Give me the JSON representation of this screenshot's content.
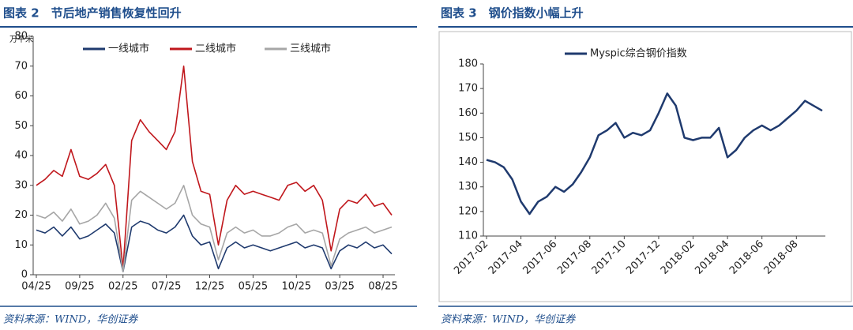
{
  "chart_data": [
    {
      "type": "line",
      "title": "图表 2　节后地产销售恢复性回升",
      "y_unit": "万平米",
      "source": "资料来源：WIND，华创证券",
      "categories": [
        "04/25",
        null,
        null,
        null,
        null,
        "09/25",
        null,
        null,
        null,
        null,
        "02/25",
        null,
        null,
        null,
        null,
        "07/25",
        null,
        null,
        null,
        null,
        "12/25",
        null,
        null,
        null,
        null,
        "05/25",
        null,
        null,
        null,
        null,
        "10/25",
        null,
        null,
        null,
        null,
        "03/25",
        null,
        null,
        null,
        null,
        "08/25",
        null
      ],
      "series": [
        {
          "name": "一线城市",
          "color": "#1f3a6e",
          "values": [
            15,
            14,
            16,
            13,
            16,
            12,
            13,
            15,
            17,
            14,
            1,
            16,
            18,
            17,
            15,
            14,
            16,
            20,
            13,
            10,
            11,
            2,
            9,
            11,
            9,
            10,
            9,
            8,
            9,
            10,
            11,
            9,
            10,
            9,
            2,
            8,
            10,
            9,
            11,
            9,
            10,
            7
          ]
        },
        {
          "name": "二线城市",
          "color": "#c0171c",
          "values": [
            30,
            32,
            35,
            33,
            42,
            33,
            32,
            34,
            37,
            30,
            2,
            45,
            52,
            48,
            45,
            42,
            48,
            70,
            38,
            28,
            27,
            10,
            25,
            30,
            27,
            28,
            27,
            26,
            25,
            30,
            31,
            28,
            30,
            25,
            8,
            22,
            25,
            24,
            27,
            23,
            24,
            20
          ]
        },
        {
          "name": "三线城市",
          "color": "#a6a6a6",
          "values": [
            20,
            19,
            21,
            18,
            22,
            17,
            18,
            20,
            24,
            19,
            1,
            25,
            28,
            26,
            24,
            22,
            24,
            30,
            20,
            17,
            16,
            5,
            14,
            16,
            14,
            15,
            13,
            13,
            14,
            16,
            17,
            14,
            15,
            14,
            3,
            12,
            14,
            15,
            16,
            14,
            15,
            16
          ]
        }
      ],
      "ylim": [
        0,
        80
      ],
      "yticks": [
        0,
        10,
        20,
        30,
        40,
        50,
        60,
        70,
        80
      ]
    },
    {
      "type": "line",
      "title": "图表 3　钢价指数小幅上升",
      "source": "资料来源：WIND，华创证券",
      "categories": [
        "2017-02",
        null,
        null,
        null,
        "2017-04",
        null,
        null,
        null,
        "2017-06",
        null,
        null,
        null,
        "2017-08",
        null,
        null,
        null,
        "2017-10",
        null,
        null,
        null,
        "2017-12",
        null,
        null,
        null,
        "2018-02",
        null,
        null,
        null,
        "2018-04",
        null,
        null,
        null,
        "2018-06",
        null,
        null,
        null,
        "2018-08",
        null,
        null,
        null
      ],
      "series": [
        {
          "name": "Myspic综合钢价指数",
          "color": "#1f3a6e",
          "values": [
            141,
            140,
            138,
            133,
            124,
            119,
            124,
            126,
            130,
            128,
            131,
            136,
            142,
            151,
            153,
            156,
            150,
            152,
            151,
            153,
            160,
            168,
            163,
            150,
            149,
            150,
            150,
            154,
            142,
            145,
            150,
            153,
            155,
            153,
            155,
            158,
            161,
            165,
            163,
            161
          ]
        }
      ],
      "ylim": [
        110,
        180
      ],
      "yticks": [
        110,
        120,
        130,
        140,
        150,
        160,
        170,
        180
      ]
    }
  ]
}
